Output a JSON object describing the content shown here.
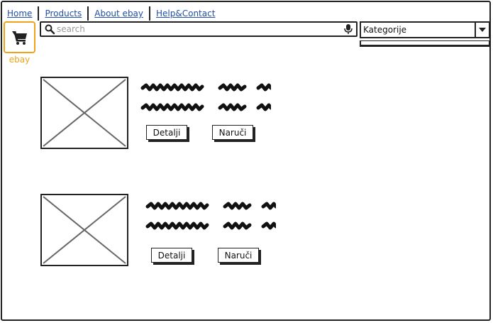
{
  "nav": {
    "links": [
      {
        "label": "Home"
      },
      {
        "label": "Products"
      },
      {
        "label": "About ebay"
      },
      {
        "label": "Help&Contact"
      }
    ]
  },
  "logo": {
    "icon": "shopping-cart-icon",
    "label": "ebay",
    "color": "#f0a31a"
  },
  "search": {
    "placeholder": "search",
    "value": ""
  },
  "category_dropdown": {
    "selected": "Kategorije"
  },
  "products": [
    {
      "details_label": "Detalji",
      "order_label": "Naruči"
    },
    {
      "details_label": "Detalji",
      "order_label": "Naruči"
    }
  ],
  "colors": {
    "link": "#1f4fa8",
    "accent": "#f0a31a",
    "ink": "#222222"
  }
}
